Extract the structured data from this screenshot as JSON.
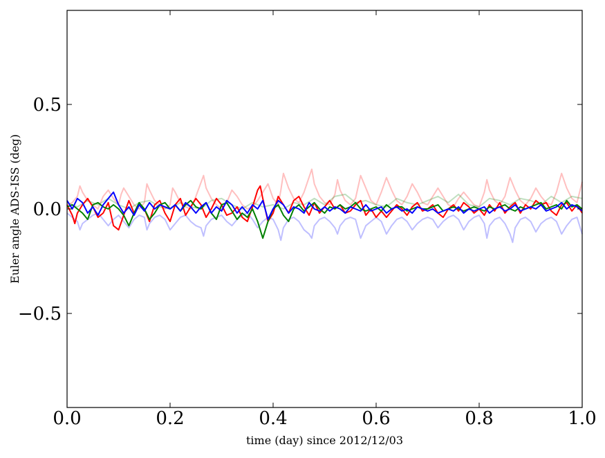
{
  "chart_data": {
    "type": "line",
    "xlabel": "time (day) since 2012/12/03",
    "ylabel": "Euler angle ADS-ISS (deg)",
    "xlim": [
      0.0,
      1.0
    ],
    "ylim": [
      -0.95,
      0.95
    ],
    "x_ticks": [
      0.0,
      0.2,
      0.4,
      0.6,
      0.8,
      1.0
    ],
    "x_tick_labels": [
      "0.0",
      "0.2",
      "0.4",
      "0.6",
      "0.8",
      "1.0"
    ],
    "y_ticks": [
      -0.5,
      0.0,
      0.5
    ],
    "y_tick_labels": [
      "−0.5",
      "0.0",
      "0.5"
    ],
    "grid": false,
    "legend": "none",
    "series": [
      {
        "color": "#ff0000",
        "opacity": 0.25,
        "x": [
          0.0,
          0.01,
          0.02,
          0.025,
          0.03,
          0.04,
          0.05,
          0.06,
          0.07,
          0.08,
          0.09,
          0.1,
          0.105,
          0.11,
          0.12,
          0.13,
          0.14,
          0.15,
          0.155,
          0.16,
          0.17,
          0.18,
          0.19,
          0.2,
          0.205,
          0.21,
          0.22,
          0.23,
          0.24,
          0.25,
          0.265,
          0.27,
          0.28,
          0.29,
          0.3,
          0.31,
          0.32,
          0.33,
          0.34,
          0.35,
          0.36,
          0.37,
          0.38,
          0.39,
          0.4,
          0.41,
          0.415,
          0.42,
          0.43,
          0.44,
          0.45,
          0.46,
          0.475,
          0.48,
          0.49,
          0.5,
          0.51,
          0.52,
          0.525,
          0.53,
          0.54,
          0.55,
          0.56,
          0.57,
          0.58,
          0.59,
          0.6,
          0.61,
          0.62,
          0.63,
          0.64,
          0.65,
          0.66,
          0.67,
          0.68,
          0.69,
          0.7,
          0.71,
          0.72,
          0.73,
          0.74,
          0.75,
          0.76,
          0.77,
          0.78,
          0.79,
          0.8,
          0.81,
          0.815,
          0.82,
          0.83,
          0.84,
          0.85,
          0.86,
          0.87,
          0.88,
          0.89,
          0.9,
          0.91,
          0.92,
          0.93,
          0.94,
          0.95,
          0.96,
          0.97,
          0.98,
          0.99,
          1.0
        ],
        "y": [
          0.02,
          0.03,
          0.06,
          0.11,
          0.08,
          0.04,
          0.02,
          0.0,
          0.06,
          0.09,
          0.05,
          0.02,
          0.07,
          0.1,
          0.06,
          0.02,
          0.0,
          0.03,
          0.12,
          0.09,
          0.04,
          0.02,
          0.0,
          0.02,
          0.1,
          0.08,
          0.03,
          0.01,
          0.0,
          0.06,
          0.16,
          0.1,
          0.05,
          0.02,
          0.0,
          0.03,
          0.09,
          0.06,
          0.02,
          0.0,
          0.01,
          0.04,
          0.08,
          0.12,
          0.05,
          0.02,
          0.09,
          0.17,
          0.1,
          0.05,
          0.03,
          0.08,
          0.19,
          0.12,
          0.06,
          0.03,
          0.02,
          0.07,
          0.14,
          0.09,
          0.04,
          0.02,
          0.05,
          0.16,
          0.1,
          0.04,
          0.02,
          0.08,
          0.15,
          0.09,
          0.04,
          0.02,
          0.06,
          0.12,
          0.08,
          0.03,
          0.02,
          0.06,
          0.1,
          0.06,
          0.02,
          0.01,
          0.05,
          0.08,
          0.05,
          0.02,
          0.01,
          0.08,
          0.14,
          0.09,
          0.04,
          0.02,
          0.06,
          0.15,
          0.09,
          0.04,
          0.02,
          0.05,
          0.1,
          0.06,
          0.03,
          0.02,
          0.08,
          0.17,
          0.1,
          0.05,
          0.03,
          0.13
        ]
      },
      {
        "color": "#0000ff",
        "opacity": 0.25,
        "x": [
          0.0,
          0.01,
          0.02,
          0.025,
          0.03,
          0.04,
          0.05,
          0.06,
          0.07,
          0.08,
          0.09,
          0.1,
          0.11,
          0.12,
          0.13,
          0.14,
          0.15,
          0.155,
          0.16,
          0.17,
          0.18,
          0.19,
          0.2,
          0.21,
          0.22,
          0.23,
          0.24,
          0.25,
          0.26,
          0.265,
          0.27,
          0.28,
          0.29,
          0.3,
          0.31,
          0.32,
          0.33,
          0.34,
          0.35,
          0.36,
          0.37,
          0.38,
          0.39,
          0.4,
          0.41,
          0.415,
          0.42,
          0.43,
          0.44,
          0.45,
          0.46,
          0.47,
          0.475,
          0.48,
          0.49,
          0.5,
          0.51,
          0.52,
          0.525,
          0.53,
          0.54,
          0.55,
          0.56,
          0.57,
          0.58,
          0.59,
          0.6,
          0.61,
          0.62,
          0.63,
          0.64,
          0.65,
          0.66,
          0.67,
          0.68,
          0.69,
          0.7,
          0.71,
          0.72,
          0.73,
          0.74,
          0.75,
          0.76,
          0.77,
          0.78,
          0.79,
          0.8,
          0.81,
          0.815,
          0.82,
          0.83,
          0.84,
          0.85,
          0.86,
          0.865,
          0.87,
          0.88,
          0.89,
          0.9,
          0.91,
          0.92,
          0.93,
          0.94,
          0.95,
          0.96,
          0.97,
          0.98,
          0.99,
          1.0
        ],
        "y": [
          -0.02,
          -0.04,
          -0.06,
          -0.1,
          -0.07,
          -0.05,
          -0.03,
          -0.02,
          -0.05,
          -0.08,
          -0.05,
          -0.03,
          -0.06,
          -0.09,
          -0.05,
          -0.03,
          -0.04,
          -0.1,
          -0.07,
          -0.04,
          -0.03,
          -0.05,
          -0.1,
          -0.07,
          -0.04,
          -0.03,
          -0.06,
          -0.08,
          -0.09,
          -0.13,
          -0.08,
          -0.05,
          -0.04,
          -0.03,
          -0.06,
          -0.08,
          -0.05,
          -0.03,
          -0.02,
          -0.05,
          -0.09,
          -0.06,
          -0.04,
          -0.05,
          -0.1,
          -0.15,
          -0.09,
          -0.05,
          -0.04,
          -0.06,
          -0.1,
          -0.12,
          -0.14,
          -0.08,
          -0.05,
          -0.04,
          -0.06,
          -0.09,
          -0.12,
          -0.08,
          -0.05,
          -0.04,
          -0.05,
          -0.14,
          -0.08,
          -0.06,
          -0.04,
          -0.06,
          -0.12,
          -0.08,
          -0.05,
          -0.04,
          -0.06,
          -0.1,
          -0.07,
          -0.05,
          -0.04,
          -0.05,
          -0.09,
          -0.06,
          -0.04,
          -0.03,
          -0.05,
          -0.1,
          -0.06,
          -0.04,
          -0.03,
          -0.07,
          -0.14,
          -0.08,
          -0.05,
          -0.04,
          -0.07,
          -0.12,
          -0.16,
          -0.09,
          -0.05,
          -0.04,
          -0.06,
          -0.11,
          -0.07,
          -0.05,
          -0.04,
          -0.06,
          -0.12,
          -0.08,
          -0.05,
          -0.04,
          -0.12
        ]
      },
      {
        "color": "#008000",
        "opacity": 0.25,
        "x": [
          0.0,
          0.02,
          0.04,
          0.06,
          0.08,
          0.1,
          0.12,
          0.14,
          0.16,
          0.18,
          0.2,
          0.22,
          0.24,
          0.26,
          0.28,
          0.3,
          0.32,
          0.34,
          0.36,
          0.38,
          0.4,
          0.42,
          0.44,
          0.46,
          0.48,
          0.5,
          0.52,
          0.54,
          0.56,
          0.58,
          0.6,
          0.62,
          0.64,
          0.66,
          0.68,
          0.7,
          0.72,
          0.74,
          0.76,
          0.78,
          0.8,
          0.82,
          0.84,
          0.86,
          0.88,
          0.9,
          0.92,
          0.94,
          0.96,
          0.98,
          1.0
        ],
        "y": [
          0.03,
          0.01,
          0.04,
          0.02,
          0.05,
          0.02,
          0.0,
          0.03,
          0.04,
          0.01,
          0.0,
          0.03,
          0.01,
          0.0,
          0.04,
          0.05,
          0.02,
          0.0,
          0.03,
          0.01,
          0.02,
          0.0,
          0.03,
          0.02,
          0.05,
          0.02,
          0.06,
          0.07,
          0.03,
          0.04,
          0.02,
          0.01,
          0.05,
          0.03,
          0.02,
          0.04,
          0.06,
          0.03,
          0.07,
          0.02,
          0.01,
          0.05,
          0.04,
          0.02,
          0.05,
          0.04,
          0.02,
          0.06,
          0.03,
          0.06,
          0.05
        ]
      },
      {
        "color": "#ff0000",
        "opacity": 1,
        "x": [
          0.0,
          0.01,
          0.015,
          0.02,
          0.03,
          0.04,
          0.05,
          0.06,
          0.07,
          0.08,
          0.09,
          0.1,
          0.11,
          0.12,
          0.13,
          0.14,
          0.15,
          0.16,
          0.17,
          0.18,
          0.19,
          0.2,
          0.21,
          0.22,
          0.23,
          0.24,
          0.25,
          0.26,
          0.27,
          0.28,
          0.29,
          0.3,
          0.31,
          0.32,
          0.33,
          0.34,
          0.35,
          0.36,
          0.37,
          0.375,
          0.38,
          0.39,
          0.4,
          0.41,
          0.42,
          0.43,
          0.44,
          0.45,
          0.46,
          0.47,
          0.48,
          0.49,
          0.5,
          0.51,
          0.52,
          0.53,
          0.54,
          0.55,
          0.56,
          0.57,
          0.58,
          0.59,
          0.6,
          0.61,
          0.62,
          0.63,
          0.64,
          0.65,
          0.66,
          0.67,
          0.68,
          0.69,
          0.7,
          0.71,
          0.72,
          0.73,
          0.74,
          0.75,
          0.76,
          0.77,
          0.78,
          0.79,
          0.8,
          0.81,
          0.82,
          0.83,
          0.84,
          0.85,
          0.86,
          0.87,
          0.88,
          0.89,
          0.9,
          0.91,
          0.92,
          0.93,
          0.94,
          0.95,
          0.96,
          0.97,
          0.98,
          0.99,
          1.0
        ],
        "y": [
          0.02,
          -0.03,
          -0.07,
          -0.02,
          0.02,
          0.05,
          0.01,
          -0.04,
          -0.02,
          0.03,
          -0.08,
          -0.1,
          -0.03,
          0.04,
          -0.02,
          0.02,
          0.0,
          -0.06,
          0.02,
          0.04,
          -0.02,
          -0.06,
          0.02,
          0.05,
          -0.03,
          0.01,
          0.05,
          0.02,
          -0.04,
          0.0,
          0.05,
          0.02,
          -0.03,
          -0.02,
          0.01,
          -0.04,
          -0.06,
          0.01,
          0.09,
          0.11,
          0.05,
          -0.06,
          -0.02,
          0.06,
          0.02,
          -0.02,
          0.04,
          0.06,
          0.01,
          -0.03,
          0.03,
          -0.02,
          0.01,
          0.04,
          0.0,
          0.02,
          -0.02,
          -0.01,
          0.02,
          0.04,
          -0.03,
          0.0,
          -0.04,
          -0.01,
          -0.04,
          -0.01,
          0.02,
          0.0,
          -0.03,
          0.01,
          0.03,
          -0.01,
          0.0,
          0.02,
          -0.02,
          -0.04,
          0.0,
          0.02,
          -0.01,
          0.03,
          0.01,
          -0.02,
          0.0,
          -0.03,
          0.02,
          -0.01,
          0.03,
          -0.02,
          0.01,
          0.03,
          -0.02,
          0.02,
          0.0,
          0.04,
          0.02,
          0.03,
          -0.01,
          -0.03,
          0.02,
          0.03,
          -0.01,
          0.02,
          -0.02
        ]
      },
      {
        "color": "#008000",
        "opacity": 1,
        "x": [
          0.0,
          0.01,
          0.02,
          0.03,
          0.04,
          0.05,
          0.06,
          0.07,
          0.08,
          0.09,
          0.1,
          0.11,
          0.12,
          0.13,
          0.14,
          0.15,
          0.16,
          0.17,
          0.18,
          0.19,
          0.2,
          0.21,
          0.22,
          0.23,
          0.24,
          0.25,
          0.26,
          0.27,
          0.28,
          0.29,
          0.3,
          0.31,
          0.32,
          0.33,
          0.34,
          0.35,
          0.36,
          0.37,
          0.38,
          0.39,
          0.4,
          0.41,
          0.42,
          0.43,
          0.44,
          0.45,
          0.46,
          0.47,
          0.48,
          0.49,
          0.5,
          0.51,
          0.52,
          0.53,
          0.54,
          0.55,
          0.56,
          0.57,
          0.58,
          0.59,
          0.6,
          0.61,
          0.62,
          0.63,
          0.64,
          0.65,
          0.66,
          0.67,
          0.68,
          0.69,
          0.7,
          0.71,
          0.72,
          0.73,
          0.74,
          0.75,
          0.76,
          0.77,
          0.78,
          0.79,
          0.8,
          0.81,
          0.82,
          0.83,
          0.84,
          0.85,
          0.86,
          0.87,
          0.88,
          0.89,
          0.9,
          0.91,
          0.92,
          0.93,
          0.94,
          0.95,
          0.96,
          0.97,
          0.98,
          0.99,
          1.0
        ],
        "y": [
          0.01,
          0.02,
          0.0,
          -0.02,
          -0.05,
          0.02,
          0.03,
          0.01,
          0.0,
          0.02,
          0.0,
          -0.03,
          -0.08,
          -0.02,
          0.03,
          0.0,
          -0.05,
          -0.02,
          0.02,
          0.03,
          0.0,
          0.02,
          -0.01,
          0.02,
          0.04,
          0.01,
          0.0,
          0.03,
          -0.02,
          -0.05,
          0.02,
          0.03,
          -0.01,
          -0.05,
          -0.02,
          -0.04,
          0.0,
          -0.06,
          -0.14,
          -0.06,
          0.0,
          0.02,
          -0.03,
          -0.06,
          0.0,
          0.02,
          -0.01,
          0.01,
          0.03,
          0.0,
          -0.02,
          0.01,
          0.0,
          0.02,
          0.0,
          0.01,
          0.03,
          0.0,
          -0.01,
          0.0,
          0.01,
          -0.01,
          0.02,
          0.0,
          0.01,
          0.01,
          -0.01,
          0.0,
          0.01,
          0.0,
          0.0,
          0.01,
          0.02,
          -0.01,
          0.0,
          0.01,
          0.0,
          -0.01,
          0.0,
          0.01,
          0.0,
          -0.01,
          0.01,
          0.0,
          0.01,
          0.02,
          0.0,
          -0.01,
          0.01,
          0.0,
          0.01,
          0.02,
          0.03,
          0.0,
          0.01,
          0.02,
          0.0,
          0.04,
          0.01,
          0.02,
          0.0
        ]
      },
      {
        "color": "#0000ff",
        "opacity": 1,
        "x": [
          0.0,
          0.01,
          0.02,
          0.03,
          0.04,
          0.05,
          0.06,
          0.07,
          0.08,
          0.09,
          0.1,
          0.11,
          0.12,
          0.13,
          0.14,
          0.15,
          0.16,
          0.17,
          0.18,
          0.19,
          0.2,
          0.21,
          0.22,
          0.23,
          0.24,
          0.25,
          0.26,
          0.27,
          0.28,
          0.29,
          0.3,
          0.31,
          0.32,
          0.33,
          0.34,
          0.35,
          0.36,
          0.37,
          0.38,
          0.39,
          0.4,
          0.41,
          0.42,
          0.43,
          0.44,
          0.45,
          0.46,
          0.47,
          0.48,
          0.49,
          0.5,
          0.51,
          0.52,
          0.53,
          0.54,
          0.55,
          0.56,
          0.57,
          0.58,
          0.59,
          0.6,
          0.61,
          0.62,
          0.63,
          0.64,
          0.65,
          0.66,
          0.67,
          0.68,
          0.69,
          0.7,
          0.71,
          0.72,
          0.73,
          0.74,
          0.75,
          0.76,
          0.77,
          0.78,
          0.79,
          0.8,
          0.81,
          0.82,
          0.83,
          0.84,
          0.85,
          0.86,
          0.87,
          0.88,
          0.89,
          0.9,
          0.91,
          0.92,
          0.93,
          0.94,
          0.95,
          0.96,
          0.97,
          0.98,
          0.99,
          1.0
        ],
        "y": [
          0.04,
          0.0,
          0.05,
          0.03,
          -0.02,
          0.01,
          -0.03,
          0.02,
          0.05,
          0.08,
          0.02,
          -0.02,
          0.01,
          -0.03,
          0.02,
          -0.01,
          0.03,
          0.0,
          0.02,
          0.01,
          0.0,
          0.02,
          -0.01,
          0.03,
          0.01,
          -0.02,
          0.01,
          0.03,
          -0.02,
          0.01,
          -0.01,
          0.04,
          0.02,
          -0.02,
          0.01,
          -0.02,
          0.02,
          0.0,
          0.04,
          -0.05,
          0.0,
          0.04,
          0.02,
          -0.02,
          0.01,
          0.0,
          -0.02,
          0.03,
          0.0,
          -0.01,
          0.01,
          -0.01,
          0.01,
          0.0,
          -0.02,
          0.01,
          0.0,
          -0.01,
          0.02,
          -0.01,
          0.0,
          0.01,
          -0.02,
          0.0,
          0.01,
          -0.01,
          0.0,
          -0.02,
          0.01,
          0.0,
          -0.01,
          0.0,
          -0.02,
          -0.01,
          0.0,
          -0.01,
          0.01,
          -0.02,
          0.0,
          -0.01,
          0.0,
          0.01,
          -0.02,
          0.0,
          0.01,
          -0.01,
          0.0,
          0.02,
          -0.01,
          0.0,
          0.01,
          0.0,
          0.02,
          -0.01,
          0.0,
          0.01,
          0.03,
          0.0,
          0.02,
          0.01,
          -0.01
        ]
      }
    ]
  }
}
